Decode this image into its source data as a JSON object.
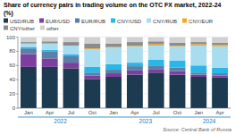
{
  "chart_data": {
    "type": "bar",
    "stacked": true,
    "title": "Share of currency pairs in trading volume on the OTC FX market, 2022-24 (%)",
    "source": "Source: Central Bank of Russia",
    "categories": [
      "Jan",
      "Apr",
      "Jul",
      "Oct",
      "Jan",
      "Apr",
      "Jul",
      "Oct",
      "Jan",
      "Apr"
    ],
    "annotations": [
      "2022",
      "2023",
      "2024"
    ],
    "series": [
      {
        "name": "USD/RUB",
        "color": "#1c3a50",
        "values": [
          58,
          58,
          56,
          41,
          44,
          47,
          50,
          47,
          44,
          43
        ]
      },
      {
        "name": "EUR/USD",
        "color": "#7b3f9e",
        "values": [
          18,
          12,
          8,
          5,
          5,
          6,
          5,
          5,
          3,
          3
        ]
      },
      {
        "name": "EUR/RUB",
        "color": "#5b7fa6",
        "values": [
          8,
          10,
          9,
          4,
          5,
          6,
          5,
          5,
          3,
          3
        ]
      },
      {
        "name": "CNY/USD",
        "color": "#29b6e8",
        "values": [
          2,
          2,
          3,
          8,
          8,
          5,
          8,
          10,
          10,
          8
        ]
      },
      {
        "name": "CNY/RUB",
        "color": "#a8ddf0",
        "values": [
          5,
          9,
          12,
          25,
          23,
          23,
          20,
          20,
          28,
          30
        ]
      },
      {
        "name": "CNY/EUR",
        "color": "#f5a623",
        "values": [
          0,
          0,
          0,
          1,
          1,
          1,
          2,
          1,
          2,
          2
        ]
      },
      {
        "name": "CNY/other",
        "color": "#8c8c8c",
        "values": [
          2,
          3,
          5,
          7,
          5,
          5,
          4,
          4,
          3,
          3
        ]
      },
      {
        "name": "other",
        "color": "#d0d0d0",
        "values": [
          7,
          6,
          7,
          9,
          9,
          7,
          6,
          8,
          7,
          8
        ]
      }
    ],
    "ylim": [
      0,
      100
    ],
    "yticks": [
      0,
      20,
      40,
      60,
      80,
      100
    ],
    "grid": true,
    "legend": "top"
  }
}
